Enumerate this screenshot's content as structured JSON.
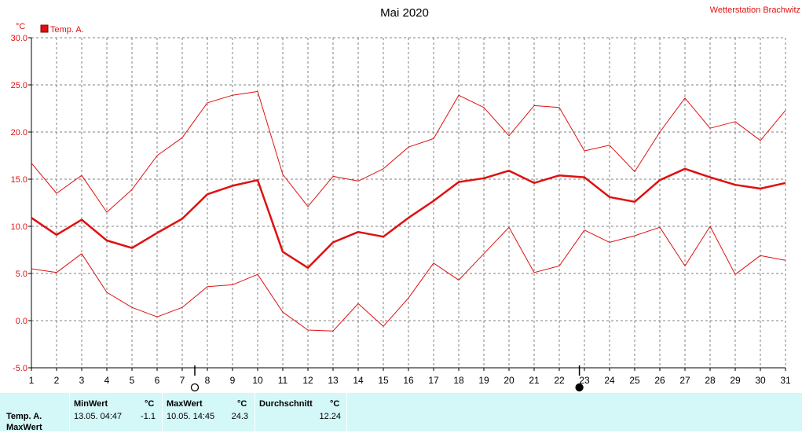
{
  "header": {
    "title": "Mai 2020",
    "station": "Wetterstation Brachwitz",
    "unit": "°C"
  },
  "chart_data": {
    "type": "line",
    "title": "Mai 2020",
    "ylabel": "°C",
    "ylim": [
      -5,
      30
    ],
    "yticks": [
      "30.0",
      "25.0",
      "20.0",
      "15.0",
      "10.0",
      "5.0",
      "0.0",
      "-5.0"
    ],
    "x": [
      1,
      2,
      3,
      4,
      5,
      6,
      7,
      8,
      9,
      10,
      11,
      12,
      13,
      14,
      15,
      16,
      17,
      18,
      19,
      20,
      21,
      22,
      23,
      24,
      25,
      26,
      27,
      28,
      29,
      30,
      31
    ],
    "grid": true,
    "legend_position": "top-left",
    "colors": {
      "series": "#e01010",
      "grid": "#808080",
      "axis": "#000000"
    },
    "series": [
      {
        "name": "Temp. A.",
        "role": "mean",
        "values": [
          10.9,
          9.1,
          10.7,
          8.5,
          7.7,
          9.3,
          10.8,
          13.4,
          14.3,
          14.9,
          7.3,
          5.6,
          8.3,
          9.4,
          8.9,
          10.9,
          12.7,
          14.7,
          15.1,
          15.9,
          14.6,
          15.4,
          15.2,
          13.1,
          12.6,
          14.9,
          16.1,
          15.2,
          14.4,
          14.0,
          14.6
        ]
      },
      {
        "role": "max",
        "values": [
          16.7,
          13.5,
          15.4,
          11.5,
          13.9,
          17.5,
          19.4,
          23.1,
          23.9,
          24.3,
          15.5,
          12.1,
          15.3,
          14.8,
          16.1,
          18.4,
          19.3,
          23.9,
          22.6,
          19.6,
          22.8,
          22.6,
          18.0,
          18.6,
          15.8,
          20.0,
          23.6,
          20.4,
          21.1,
          19.1,
          22.3
        ]
      },
      {
        "role": "min",
        "values": [
          5.5,
          5.1,
          7.1,
          3.0,
          1.4,
          0.4,
          1.4,
          3.6,
          3.8,
          4.9,
          0.9,
          -1.0,
          -1.1,
          1.8,
          -0.6,
          2.4,
          6.1,
          4.3,
          7.1,
          9.9,
          5.1,
          5.8,
          9.6,
          8.3,
          9.0,
          9.9,
          5.8,
          10.0,
          4.9,
          6.9,
          6.4
        ]
      }
    ],
    "moon_phases": [
      {
        "day": 7.5,
        "phase": "full"
      },
      {
        "day": 22.8,
        "phase": "new"
      }
    ]
  },
  "stats_table": {
    "row_labels": [
      "Temp. A.",
      "MaxWert"
    ],
    "min": {
      "header": "MinWert",
      "unit": "°C",
      "datetime": "13.05.  04:47",
      "value": "-1.1"
    },
    "max": {
      "header": "MaxWert",
      "unit": "°C",
      "datetime": "10.05.  14:45",
      "value": "24.3"
    },
    "avg": {
      "header": "Durchschnitt",
      "unit": "°C",
      "value": "12.24"
    }
  }
}
